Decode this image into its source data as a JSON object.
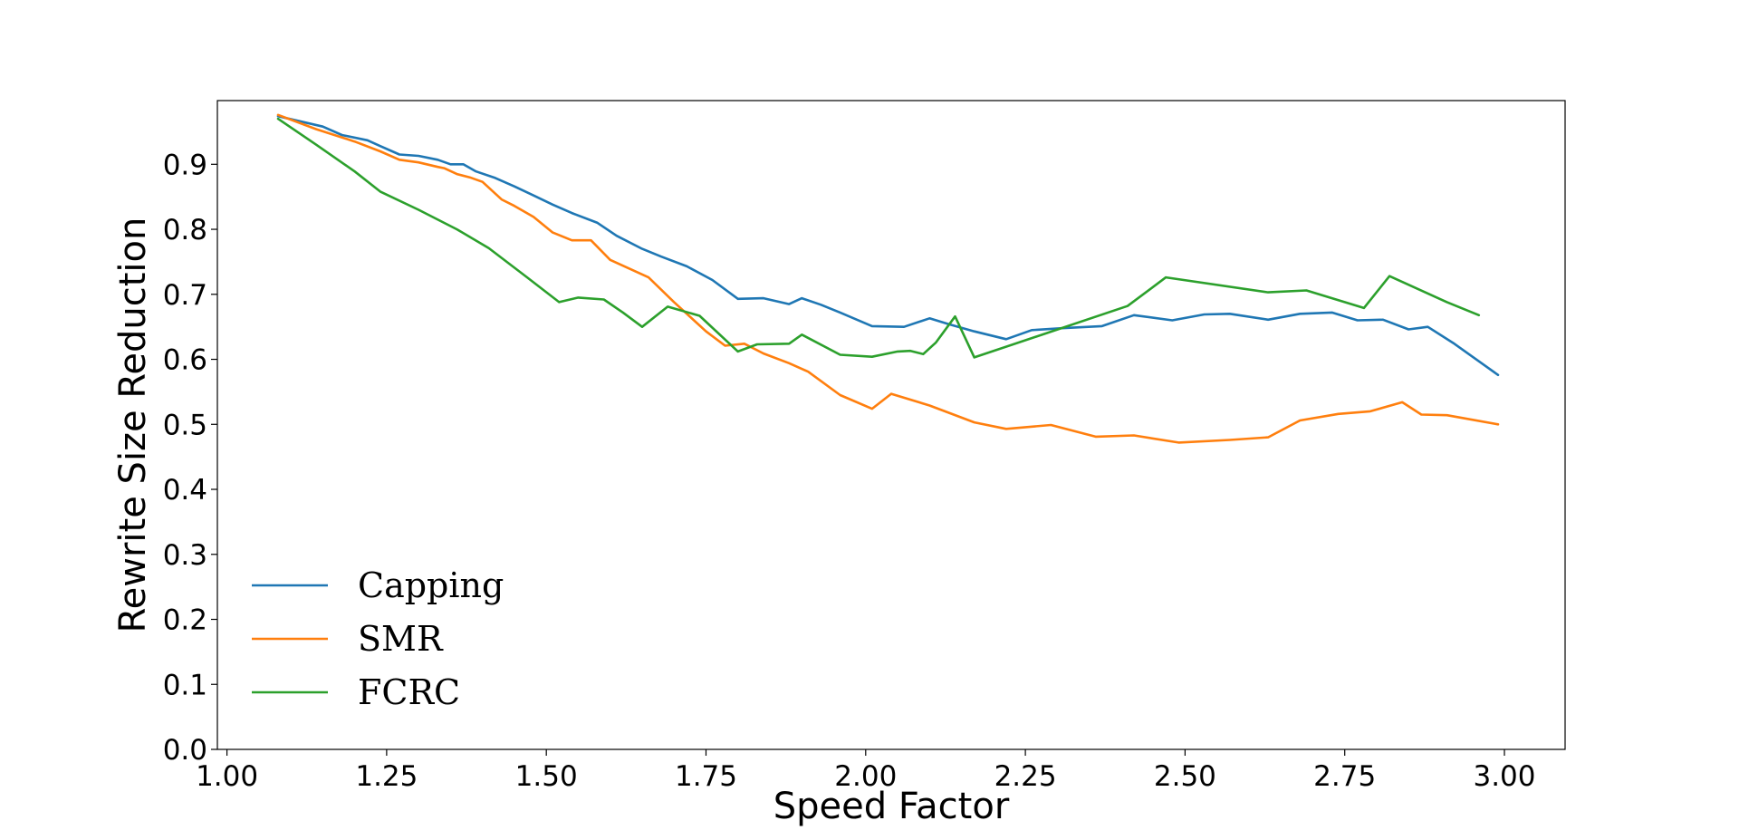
{
  "chart_data": {
    "type": "line",
    "title": "",
    "xlabel": "Speed Factor",
    "ylabel": "Rewrite Size Reduction",
    "xlim": [
      0.985,
      3.095
    ],
    "ylim": [
      0.0,
      0.998
    ],
    "xticks": [
      1.0,
      1.25,
      1.5,
      1.75,
      2.0,
      2.25,
      2.5,
      2.75,
      3.0
    ],
    "xtick_labels": [
      "1.00",
      "1.25",
      "1.50",
      "1.75",
      "2.00",
      "2.25",
      "2.50",
      "2.75",
      "3.00"
    ],
    "yticks": [
      0.0,
      0.1,
      0.2,
      0.3,
      0.4,
      0.5,
      0.6,
      0.7,
      0.8,
      0.9
    ],
    "ytick_labels": [
      "0.0",
      "0.1",
      "0.2",
      "0.3",
      "0.4",
      "0.5",
      "0.6",
      "0.7",
      "0.8",
      "0.9"
    ],
    "grid": false,
    "legend_position": "lower-left",
    "series": [
      {
        "name": "Capping",
        "color": "#1f77b4",
        "points": [
          [
            1.08,
            0.974
          ],
          [
            1.15,
            0.958
          ],
          [
            1.18,
            0.945
          ],
          [
            1.22,
            0.937
          ],
          [
            1.24,
            0.928
          ],
          [
            1.27,
            0.915
          ],
          [
            1.3,
            0.913
          ],
          [
            1.33,
            0.907
          ],
          [
            1.35,
            0.9
          ],
          [
            1.37,
            0.9
          ],
          [
            1.39,
            0.889
          ],
          [
            1.42,
            0.879
          ],
          [
            1.45,
            0.866
          ],
          [
            1.48,
            0.852
          ],
          [
            1.51,
            0.838
          ],
          [
            1.54,
            0.825
          ],
          [
            1.58,
            0.81
          ],
          [
            1.61,
            0.79
          ],
          [
            1.65,
            0.77
          ],
          [
            1.68,
            0.758
          ],
          [
            1.72,
            0.743
          ],
          [
            1.76,
            0.722
          ],
          [
            1.8,
            0.693
          ],
          [
            1.84,
            0.694
          ],
          [
            1.88,
            0.685
          ],
          [
            1.9,
            0.694
          ],
          [
            1.93,
            0.684
          ],
          [
            1.96,
            0.672
          ],
          [
            2.01,
            0.651
          ],
          [
            2.06,
            0.65
          ],
          [
            2.1,
            0.663
          ],
          [
            2.13,
            0.654
          ],
          [
            2.17,
            0.643
          ],
          [
            2.22,
            0.631
          ],
          [
            2.26,
            0.645
          ],
          [
            2.31,
            0.648
          ],
          [
            2.37,
            0.651
          ],
          [
            2.42,
            0.668
          ],
          [
            2.48,
            0.66
          ],
          [
            2.53,
            0.669
          ],
          [
            2.57,
            0.67
          ],
          [
            2.63,
            0.661
          ],
          [
            2.68,
            0.67
          ],
          [
            2.73,
            0.672
          ],
          [
            2.77,
            0.66
          ],
          [
            2.81,
            0.661
          ],
          [
            2.85,
            0.646
          ],
          [
            2.88,
            0.65
          ],
          [
            2.92,
            0.625
          ],
          [
            2.96,
            0.597
          ],
          [
            2.99,
            0.576
          ]
        ]
      },
      {
        "name": "SMR",
        "color": "#ff7f0e",
        "points": [
          [
            1.08,
            0.976
          ],
          [
            1.14,
            0.954
          ],
          [
            1.2,
            0.935
          ],
          [
            1.24,
            0.92
          ],
          [
            1.27,
            0.907
          ],
          [
            1.3,
            0.903
          ],
          [
            1.33,
            0.896
          ],
          [
            1.34,
            0.894
          ],
          [
            1.36,
            0.885
          ],
          [
            1.38,
            0.88
          ],
          [
            1.4,
            0.873
          ],
          [
            1.43,
            0.846
          ],
          [
            1.45,
            0.836
          ],
          [
            1.48,
            0.819
          ],
          [
            1.51,
            0.795
          ],
          [
            1.54,
            0.783
          ],
          [
            1.57,
            0.783
          ],
          [
            1.6,
            0.753
          ],
          [
            1.66,
            0.726
          ],
          [
            1.7,
            0.688
          ],
          [
            1.75,
            0.643
          ],
          [
            1.78,
            0.621
          ],
          [
            1.81,
            0.624
          ],
          [
            1.84,
            0.609
          ],
          [
            1.88,
            0.594
          ],
          [
            1.91,
            0.581
          ],
          [
            1.96,
            0.545
          ],
          [
            2.01,
            0.524
          ],
          [
            2.04,
            0.547
          ],
          [
            2.1,
            0.529
          ],
          [
            2.17,
            0.503
          ],
          [
            2.22,
            0.493
          ],
          [
            2.29,
            0.499
          ],
          [
            2.36,
            0.481
          ],
          [
            2.42,
            0.483
          ],
          [
            2.49,
            0.472
          ],
          [
            2.57,
            0.476
          ],
          [
            2.63,
            0.48
          ],
          [
            2.68,
            0.506
          ],
          [
            2.74,
            0.516
          ],
          [
            2.79,
            0.52
          ],
          [
            2.84,
            0.534
          ],
          [
            2.87,
            0.515
          ],
          [
            2.91,
            0.514
          ],
          [
            2.99,
            0.5
          ]
        ]
      },
      {
        "name": "FCRC",
        "color": "#2ca02c",
        "points": [
          [
            1.08,
            0.97
          ],
          [
            1.14,
            0.93
          ],
          [
            1.2,
            0.889
          ],
          [
            1.24,
            0.858
          ],
          [
            1.3,
            0.83
          ],
          [
            1.36,
            0.8
          ],
          [
            1.41,
            0.771
          ],
          [
            1.47,
            0.726
          ],
          [
            1.52,
            0.688
          ],
          [
            1.55,
            0.695
          ],
          [
            1.59,
            0.692
          ],
          [
            1.62,
            0.672
          ],
          [
            1.65,
            0.65
          ],
          [
            1.69,
            0.681
          ],
          [
            1.74,
            0.667
          ],
          [
            1.8,
            0.612
          ],
          [
            1.83,
            0.623
          ],
          [
            1.88,
            0.624
          ],
          [
            1.9,
            0.638
          ],
          [
            1.96,
            0.607
          ],
          [
            2.01,
            0.604
          ],
          [
            2.05,
            0.612
          ],
          [
            2.07,
            0.613
          ],
          [
            2.09,
            0.608
          ],
          [
            2.11,
            0.626
          ],
          [
            2.14,
            0.666
          ],
          [
            2.17,
            0.603
          ],
          [
            2.41,
            0.682
          ],
          [
            2.47,
            0.726
          ],
          [
            2.63,
            0.703
          ],
          [
            2.69,
            0.706
          ],
          [
            2.78,
            0.679
          ],
          [
            2.82,
            0.728
          ],
          [
            2.91,
            0.688
          ],
          [
            2.96,
            0.668
          ]
        ]
      }
    ]
  }
}
